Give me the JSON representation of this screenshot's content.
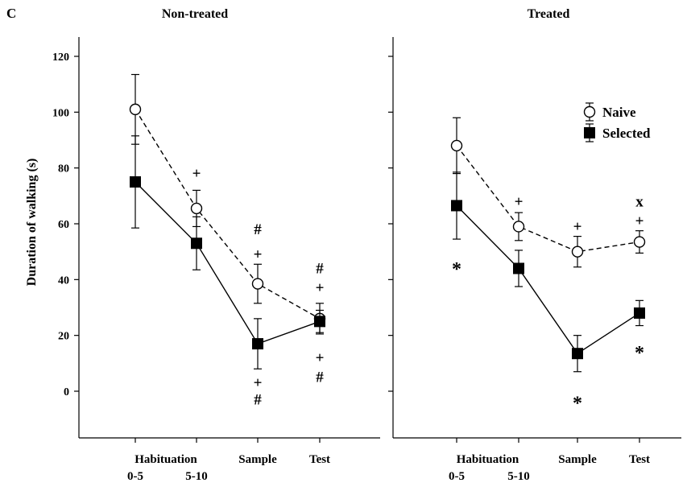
{
  "panel_label": "C",
  "ylabel": "Duration of walking (s)",
  "chart_data": [
    {
      "type": "line",
      "title": "Non-treated",
      "ylabel": "Duration of walking (s)",
      "ylim": [
        -20,
        125
      ],
      "yticks": [
        0,
        20,
        40,
        60,
        80,
        100,
        120
      ],
      "x_groups": [
        {
          "label": "Habituation",
          "ticks": [
            "0-5",
            "5-10"
          ]
        },
        {
          "label": "Sample",
          "ticks": []
        },
        {
          "label": "Test",
          "ticks": []
        }
      ],
      "categories": [
        "Habituation 0-5",
        "Habituation 5-10",
        "Sample",
        "Test"
      ],
      "series": [
        {
          "name": "Naive",
          "marker": "open-circle",
          "line": "dashed",
          "values": [
            101,
            65.5,
            38.5,
            26
          ],
          "errors": [
            12.5,
            6.5,
            7,
            5.5
          ]
        },
        {
          "name": "Selected",
          "marker": "filled-square",
          "line": "solid",
          "values": [
            75,
            53,
            17,
            25
          ],
          "errors": [
            16.5,
            9.5,
            9,
            4
          ]
        }
      ],
      "annotations": [
        {
          "text": "+",
          "category": "Habituation 5-10",
          "y": 78
        },
        {
          "text": "#",
          "category": "Sample",
          "y": 58
        },
        {
          "text": "+",
          "category": "Sample",
          "y": 49
        },
        {
          "text": "#",
          "category": "Test",
          "y": 44
        },
        {
          "text": "+",
          "category": "Test",
          "y": 37
        },
        {
          "text": "+",
          "category": "Sample",
          "y": 3
        },
        {
          "text": "#",
          "category": "Sample",
          "y": -3
        },
        {
          "text": "+",
          "category": "Test",
          "y": 12
        },
        {
          "text": "#",
          "category": "Test",
          "y": 5
        }
      ]
    },
    {
      "type": "line",
      "title": "Treated",
      "ylim": [
        -20,
        125
      ],
      "yticks": [
        0,
        20,
        40,
        60,
        80,
        100,
        120
      ],
      "x_groups": [
        {
          "label": "Habituation",
          "ticks": [
            "0-5",
            "5-10"
          ]
        },
        {
          "label": "Sample",
          "ticks": []
        },
        {
          "label": "Test",
          "ticks": []
        }
      ],
      "categories": [
        "Habituation 0-5",
        "Habituation 5-10",
        "Sample",
        "Test"
      ],
      "legend": {
        "placement": "top-right",
        "entries": [
          "Naive",
          "Selected"
        ]
      },
      "series": [
        {
          "name": "Naive",
          "marker": "open-circle",
          "line": "dashed",
          "values": [
            88,
            59,
            50,
            53.5
          ],
          "errors": [
            10,
            5,
            5.5,
            4
          ]
        },
        {
          "name": "Selected",
          "marker": "filled-square",
          "line": "solid",
          "values": [
            66.5,
            44,
            13.5,
            28
          ],
          "errors": [
            12,
            6.5,
            6.5,
            4.5
          ]
        }
      ],
      "annotations": [
        {
          "text": "+",
          "category": "Habituation 5-10",
          "y": 68
        },
        {
          "text": "+",
          "category": "Sample",
          "y": 59
        },
        {
          "text": "x",
          "category": "Test",
          "y": 68
        },
        {
          "text": "+",
          "category": "Test",
          "y": 61
        },
        {
          "text": "*",
          "category": "Habituation 0-5",
          "y": 45
        },
        {
          "text": "*",
          "category": "Sample",
          "y": -3
        },
        {
          "text": "*",
          "category": "Test",
          "y": 15
        }
      ]
    }
  ]
}
